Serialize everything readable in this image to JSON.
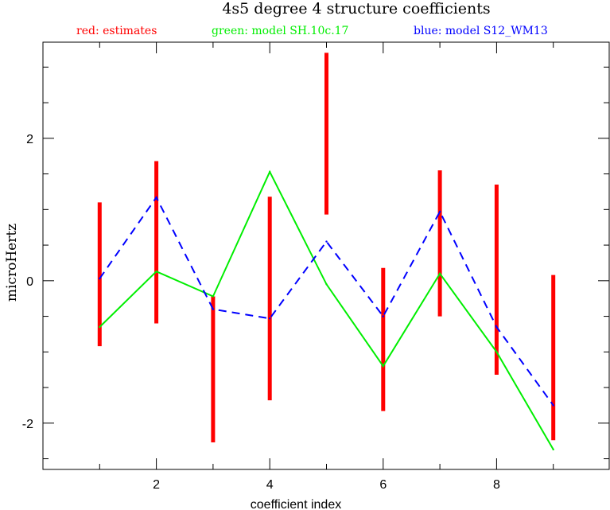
{
  "chart_data": {
    "type": "line",
    "title": "4s5 degree 4 structure coefficients",
    "xlabel": "coefficient index",
    "ylabel": "microHertz",
    "xlim": [
      0,
      10
    ],
    "ylim": [
      -2.65,
      3.35
    ],
    "xticks": [
      2,
      4,
      6,
      8
    ],
    "xtick_labels": [
      "2",
      "4",
      "6",
      "8"
    ],
    "yticks": [
      -2,
      0,
      2
    ],
    "ytick_labels": [
      "-2",
      "0",
      "2"
    ],
    "x_minor_step": 0.5,
    "y_minor_step": 0.5,
    "grid": false,
    "legend_position": "top",
    "legend": [
      {
        "label": "red: estimates",
        "color": "#ff0000"
      },
      {
        "label": "green: model SH.10c.17",
        "color": "#00ee00"
      },
      {
        "label": "blue: model S12_WM13",
        "color": "#0000ff"
      }
    ],
    "series": [
      {
        "name": "estimates",
        "kind": "errorbar",
        "color": "#ff0000",
        "x": [
          1,
          2,
          3,
          4,
          5,
          6,
          7,
          8,
          9
        ],
        "low": [
          -0.92,
          -0.6,
          -2.27,
          -1.68,
          0.93,
          -1.83,
          -0.5,
          -1.32,
          -2.24
        ],
        "high": [
          1.1,
          1.68,
          -0.22,
          1.18,
          3.2,
          0.18,
          1.55,
          1.35,
          0.08
        ]
      },
      {
        "name": "model SH.10c.17",
        "kind": "line",
        "color": "#00ee00",
        "dash": false,
        "x": [
          1,
          2,
          3,
          4,
          5,
          6,
          7,
          8,
          9
        ],
        "values": [
          -0.65,
          0.13,
          -0.22,
          1.53,
          -0.05,
          -1.2,
          0.1,
          -1.0,
          -2.37
        ]
      },
      {
        "name": "model S12_WM13",
        "kind": "line",
        "color": "#0000ff",
        "dash": true,
        "x": [
          1,
          2,
          3,
          4,
          5,
          6,
          7,
          8,
          9
        ],
        "values": [
          0.03,
          1.17,
          -0.4,
          -0.53,
          0.55,
          -0.5,
          0.97,
          -0.65,
          -1.75
        ]
      }
    ]
  }
}
